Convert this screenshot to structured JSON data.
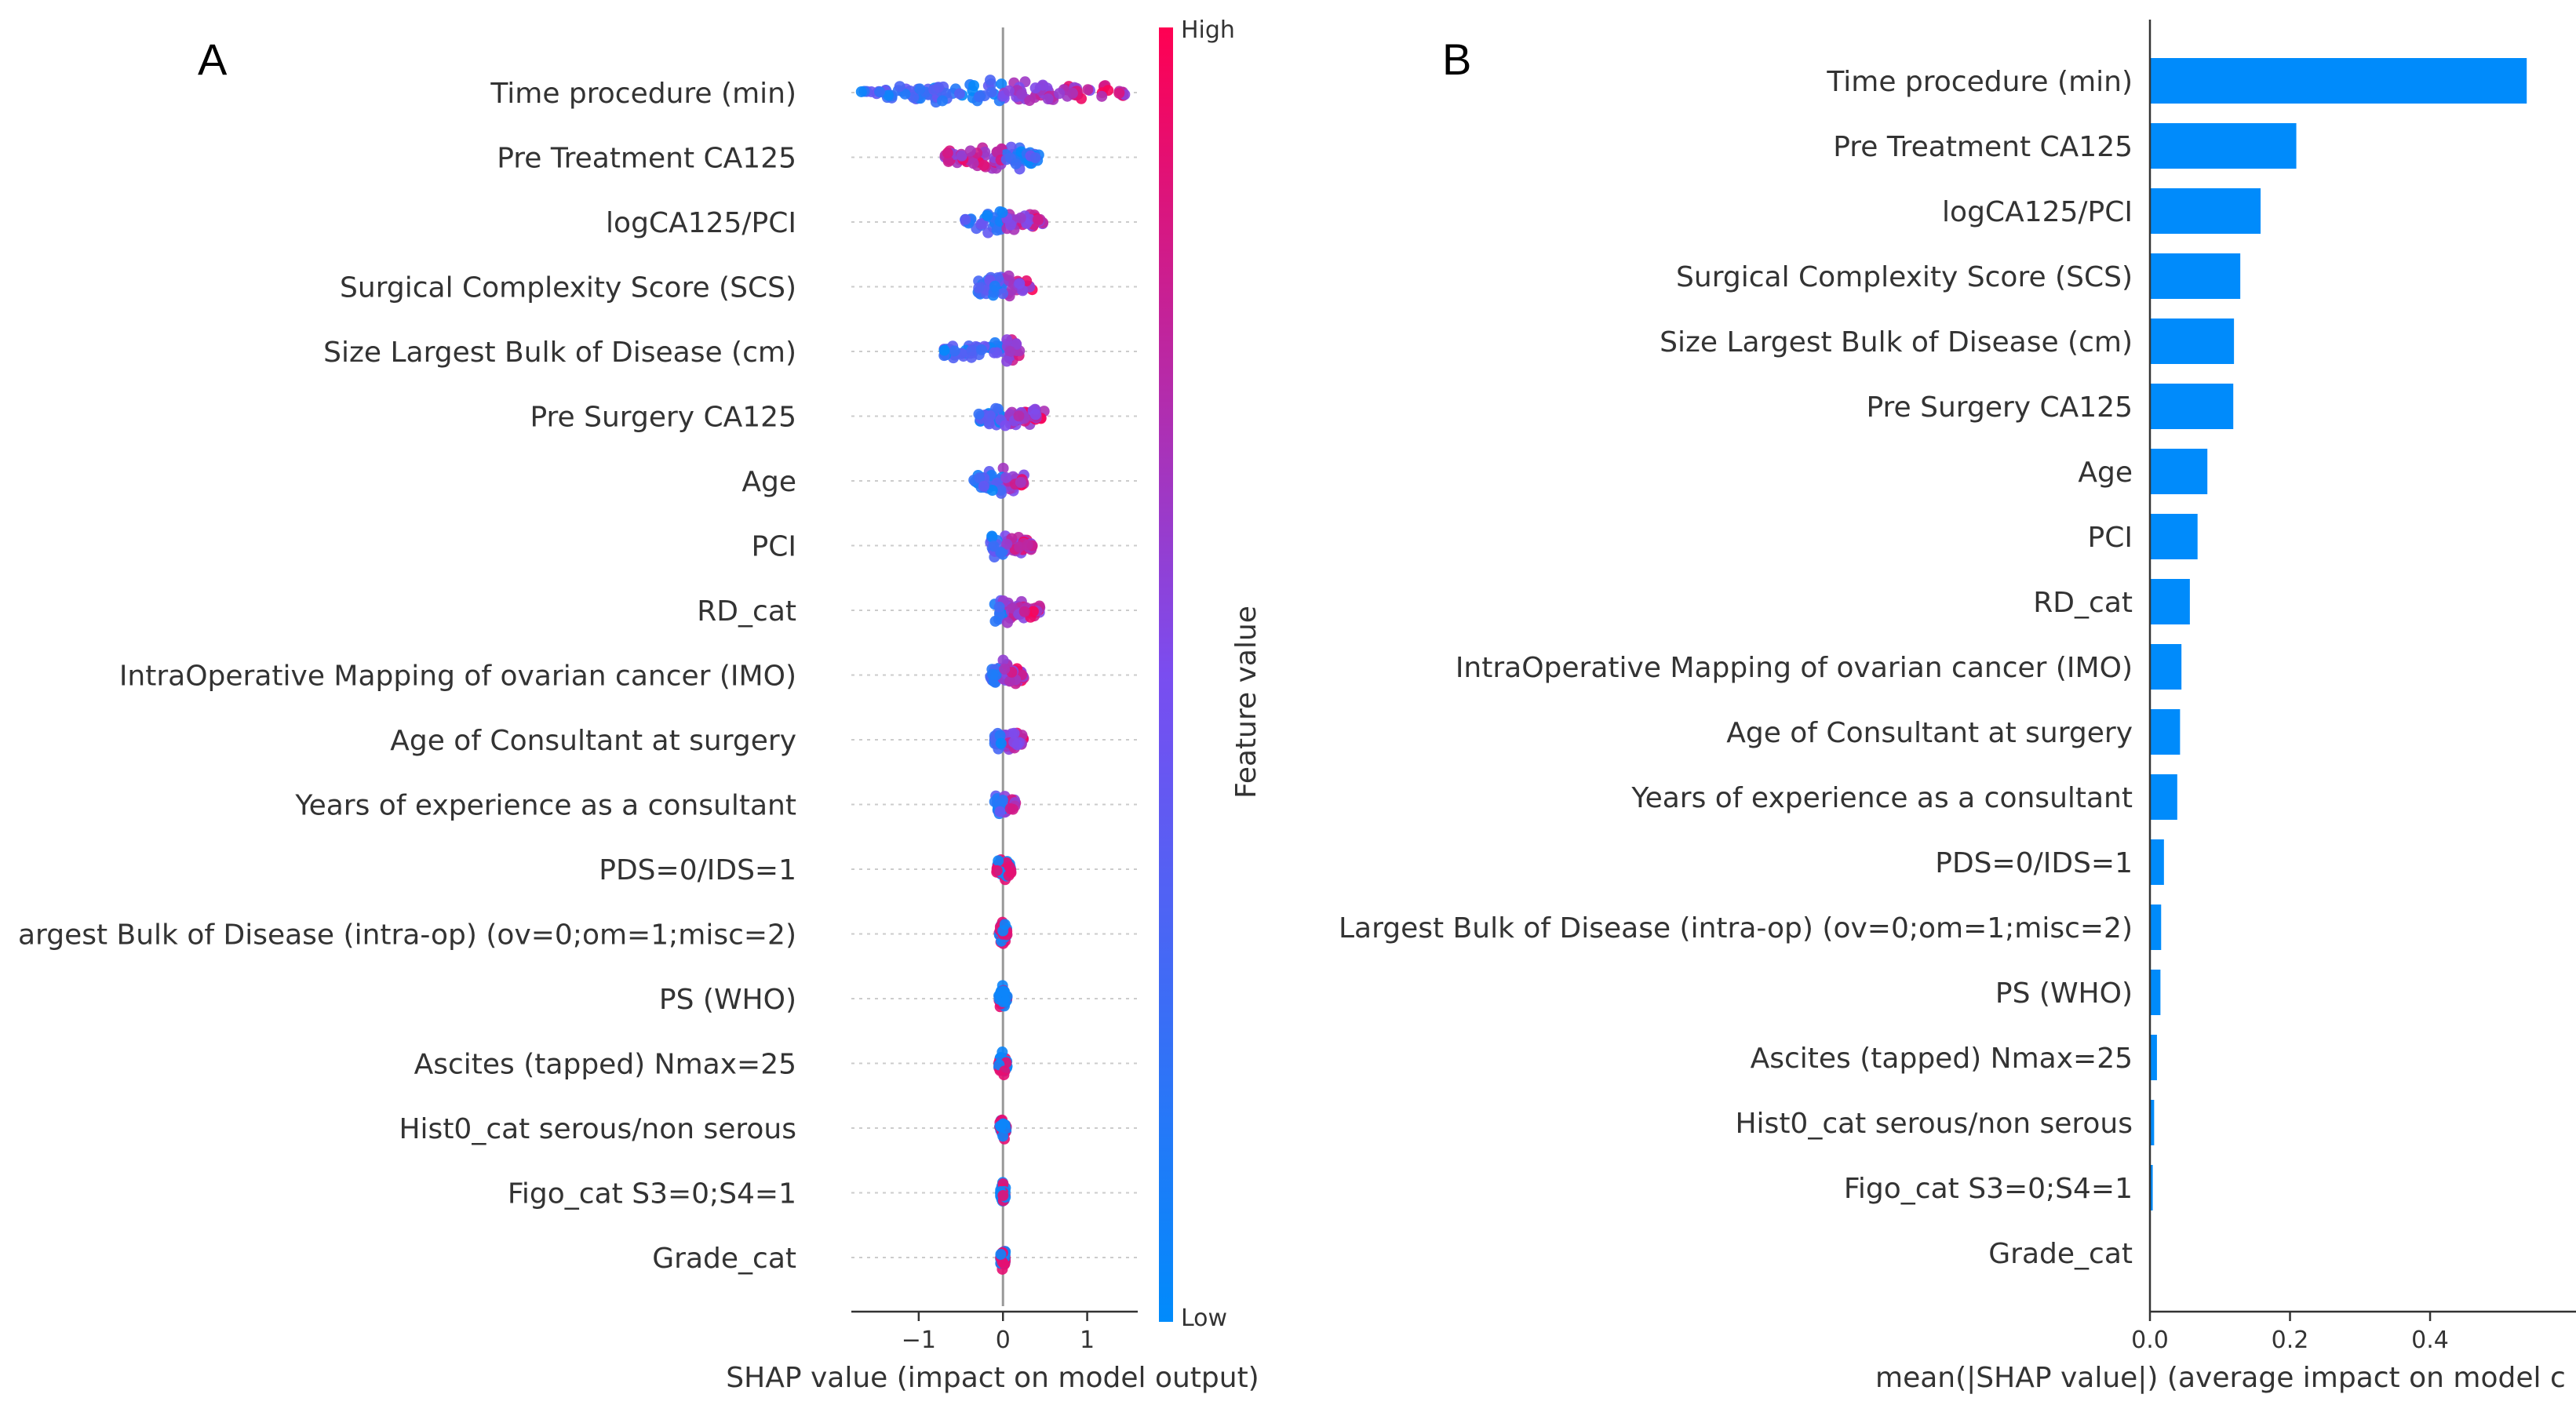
{
  "chart_data": [
    {
      "type": "scatter",
      "panel": "A",
      "subtype": "beeswarm",
      "features": [
        "Time procedure (min)",
        "Pre Treatment CA125",
        "logCA125/PCI",
        "Surgical Complexity Score (SCS)",
        "Size Largest Bulk of Disease (cm)",
        "Pre Surgery CA125",
        "Age",
        "PCI",
        "RD_cat",
        "IntraOperative Mapping of ovarian cancer (IMO)",
        "Age of Consultant at surgery",
        "Years of experience as a consultant",
        "PDS=0/IDS=1",
        "argest Bulk of Disease (intra-op) (ov=0;om=1;misc=2)",
        "PS (WHO)",
        "Ascites (tapped) Nmax=25",
        "Hist0_cat serous/non serous",
        "Figo_cat S3=0;S4=1",
        "Grade_cat"
      ],
      "shap_range": [
        [
          -1.7,
          1.5
        ],
        [
          -0.7,
          0.45
        ],
        [
          -0.45,
          0.5
        ],
        [
          -0.3,
          0.35
        ],
        [
          -0.7,
          0.2
        ],
        [
          -0.3,
          0.5
        ],
        [
          -0.35,
          0.25
        ],
        [
          -0.15,
          0.35
        ],
        [
          -0.1,
          0.45
        ],
        [
          -0.15,
          0.25
        ],
        [
          -0.1,
          0.25
        ],
        [
          -0.1,
          0.15
        ],
        [
          -0.08,
          0.1
        ],
        [
          -0.05,
          0.05
        ],
        [
          -0.05,
          0.05
        ],
        [
          -0.05,
          0.05
        ],
        [
          -0.04,
          0.04
        ],
        [
          -0.03,
          0.03
        ],
        [
          -0.03,
          0.03
        ]
      ],
      "xlabel": "SHAP value (impact on model output)",
      "xticks": [
        "−1",
        "0",
        "1"
      ],
      "xtick_values": [
        -1,
        0,
        1
      ],
      "xlim": [
        -1.8,
        1.6
      ],
      "colorbar": {
        "label": "Feature value",
        "high": "High",
        "low": "Low",
        "low_color": "#008bfb",
        "high_color": "#ff0052"
      }
    },
    {
      "type": "bar",
      "panel": "B",
      "orientation": "horizontal",
      "categories": [
        "Time procedure (min)",
        "Pre Treatment CA125",
        "logCA125/PCI",
        "Surgical Complexity Score (SCS)",
        "Size Largest Bulk of Disease (cm)",
        "Pre Surgery CA125",
        "Age",
        "PCI",
        "RD_cat",
        "IntraOperative Mapping of ovarian cancer (IMO)",
        "Age of Consultant at surgery",
        "Years of experience as a consultant",
        "PDS=0/IDS=1",
        "Largest Bulk of Disease (intra-op) (ov=0;om=1;misc=2)",
        "PS (WHO)",
        "Ascites (tapped) Nmax=25",
        "Hist0_cat serous/non serous",
        "Figo_cat S3=0;S4=1",
        "Grade_cat"
      ],
      "values": [
        0.538,
        0.209,
        0.158,
        0.129,
        0.12,
        0.119,
        0.082,
        0.068,
        0.057,
        0.045,
        0.043,
        0.039,
        0.02,
        0.016,
        0.015,
        0.01,
        0.006,
        0.004,
        0.001
      ],
      "xlabel": "mean(|SHAP value|) (average impact on model c",
      "xticks": [
        "0.0",
        "0.2",
        "0.4"
      ],
      "xtick_values": [
        0,
        0.2,
        0.4
      ],
      "xlim": [
        0,
        0.54
      ],
      "bar_color": "#008bfb"
    }
  ]
}
